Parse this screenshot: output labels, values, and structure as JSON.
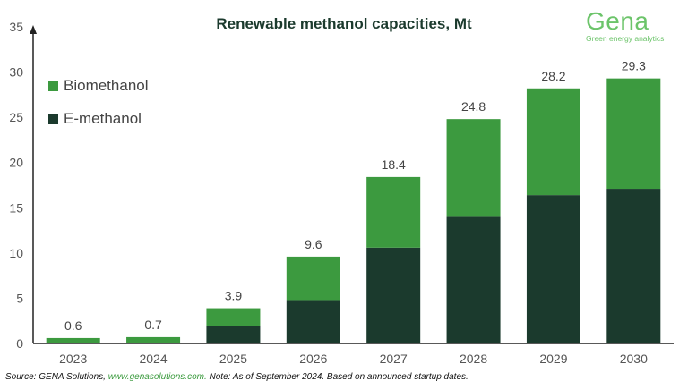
{
  "chart_data": {
    "type": "bar",
    "stacked": true,
    "title": "Renewable methanol capacities, Mt",
    "categories": [
      "2023",
      "2024",
      "2025",
      "2026",
      "2027",
      "2028",
      "2029",
      "2030"
    ],
    "series": [
      {
        "name": "E-methanol",
        "color": "#1b3a2d",
        "values": [
          0.0,
          0.1,
          1.9,
          4.8,
          10.6,
          14.0,
          16.4,
          17.1
        ]
      },
      {
        "name": "Biomethanol",
        "color": "#3c9a3f",
        "values": [
          0.6,
          0.6,
          2.0,
          4.8,
          7.8,
          10.8,
          11.8,
          12.2
        ]
      }
    ],
    "totals": [
      "0.6",
      "0.7",
      "3.9",
      "9.6",
      "18.4",
      "24.8",
      "28.2",
      "29.3"
    ],
    "ylim": [
      0,
      35
    ],
    "yticks": [
      "0",
      "5",
      "10",
      "15",
      "20",
      "25",
      "30",
      "35"
    ],
    "grid": false,
    "legend": "top-left"
  },
  "logo": {
    "name": "Gena",
    "tagline": "Green energy analytics"
  },
  "footer": {
    "source_prefix": "Source: GENA Solutions, ",
    "link": "www.genasolutions.com.",
    "note": " Note: As of September 2024. Based on announced startup dates."
  }
}
